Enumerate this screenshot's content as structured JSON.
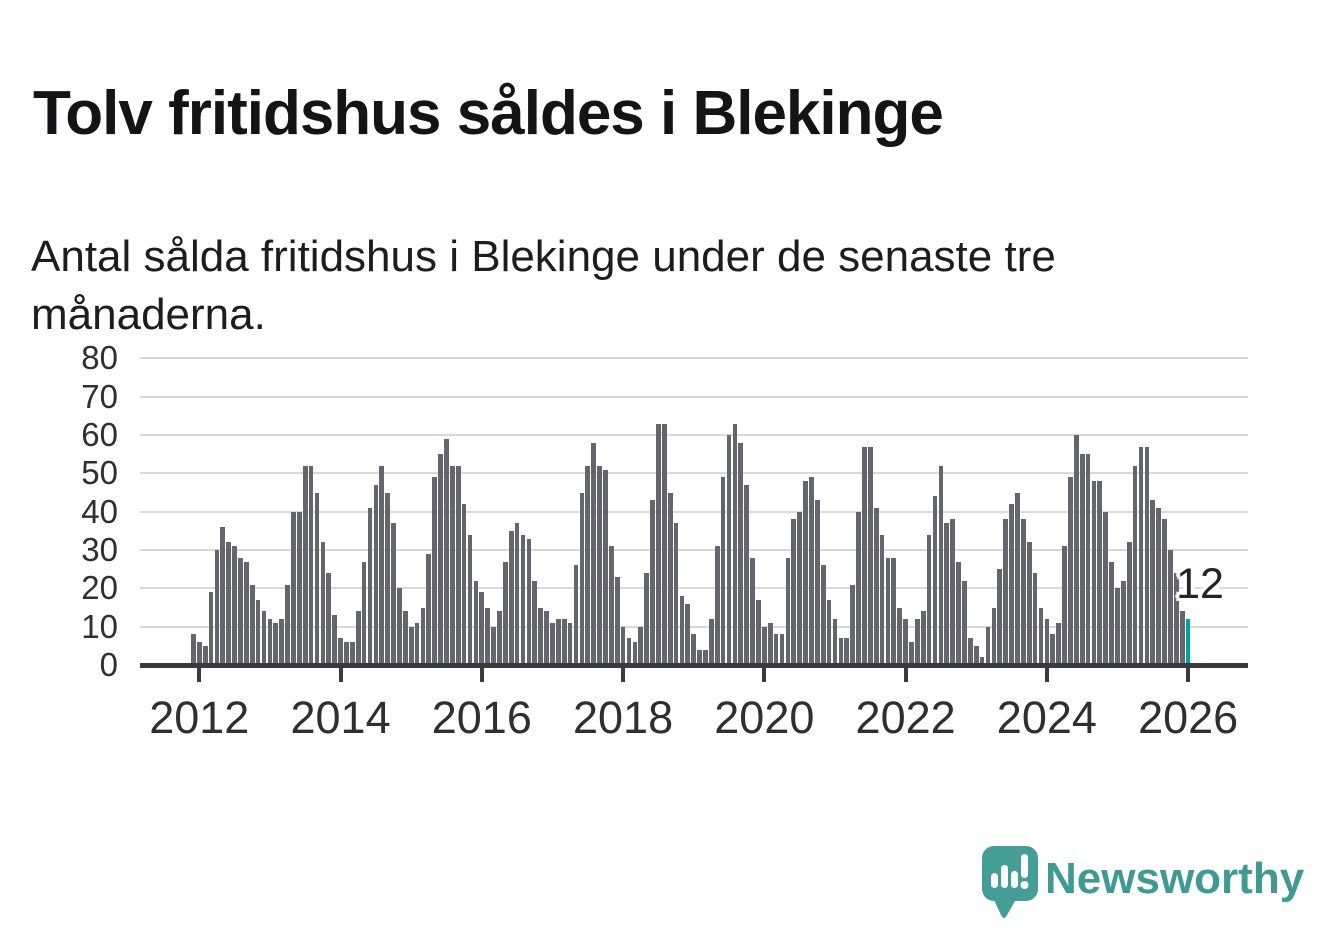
{
  "header": {
    "title": "Tolv fritidshus såldes i Blekinge",
    "subtitle_line1": "Antal sålda fritidshus i Blekinge under de senaste tre",
    "subtitle_line2": "månaderna."
  },
  "chart_data": {
    "type": "bar",
    "title": "Tolv fritidshus såldes i Blekinge",
    "xlabel": "",
    "ylabel": "",
    "ylim": [
      0,
      80
    ],
    "grid": true,
    "start_month": "2011-12",
    "end_month": "2026-01",
    "bar_color": "#65656d",
    "highlight_color": "#00a39b",
    "axis_color": "#3a3a40",
    "grid_color": "#d9d9d9",
    "y_ticks": [
      0,
      10,
      20,
      30,
      40,
      50,
      60,
      70,
      80
    ],
    "x_tick_labels": [
      "2012",
      "2014",
      "2016",
      "2018",
      "2020",
      "2022",
      "2024",
      "2026"
    ],
    "x_tick_indices": [
      1,
      25,
      49,
      73,
      97,
      121,
      145,
      169
    ],
    "highlight": {
      "index": 169,
      "value": 12,
      "label": "12"
    },
    "values": [
      8,
      6,
      5,
      19,
      30,
      36,
      32,
      31,
      28,
      27,
      21,
      17,
      14,
      12,
      11,
      12,
      21,
      40,
      40,
      52,
      52,
      45,
      32,
      24,
      13,
      7,
      6,
      6,
      14,
      27,
      41,
      47,
      52,
      45,
      37,
      20,
      14,
      10,
      11,
      15,
      29,
      49,
      55,
      59,
      52,
      52,
      42,
      34,
      22,
      19,
      15,
      10,
      14,
      27,
      35,
      37,
      34,
      33,
      22,
      15,
      14,
      11,
      12,
      12,
      11,
      26,
      45,
      52,
      58,
      52,
      51,
      31,
      23,
      10,
      7,
      6,
      10,
      24,
      43,
      63,
      63,
      45,
      37,
      18,
      16,
      8,
      4,
      4,
      12,
      31,
      49,
      60,
      63,
      58,
      47,
      28,
      17,
      10,
      11,
      8,
      8,
      28,
      38,
      40,
      48,
      49,
      43,
      26,
      17,
      12,
      7,
      7,
      21,
      40,
      57,
      57,
      41,
      34,
      28,
      28,
      15,
      12,
      6,
      12,
      14,
      34,
      44,
      52,
      37,
      38,
      27,
      22,
      7,
      5,
      2,
      10,
      15,
      25,
      38,
      42,
      45,
      38,
      32,
      24,
      15,
      12,
      8,
      11,
      31,
      49,
      60,
      55,
      55,
      48,
      48,
      40,
      27,
      20,
      22,
      32,
      52,
      57,
      57,
      43,
      41,
      38,
      30,
      24,
      14,
      12
    ]
  },
  "annotation": {
    "last_value_label": "12"
  },
  "footer": {
    "brand": "Newsworthy",
    "brand_color": "#3f9a93"
  }
}
